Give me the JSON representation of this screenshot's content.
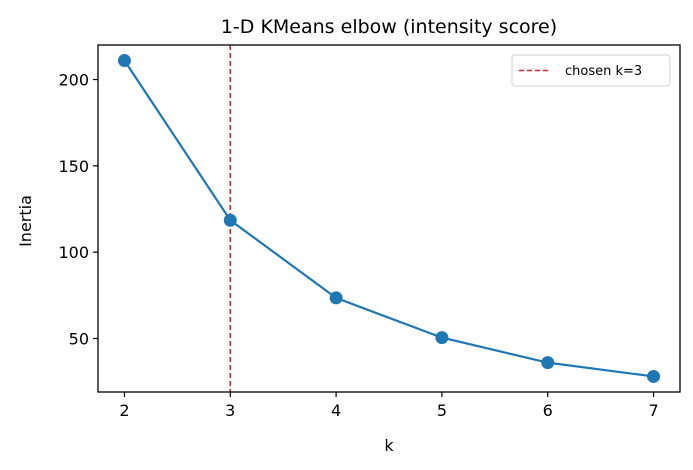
{
  "chart_data": {
    "type": "line",
    "title": "1-D KMeans elbow (intensity score)",
    "xlabel": "k",
    "ylabel": "Inertia",
    "x": [
      2,
      3,
      4,
      5,
      6,
      7
    ],
    "series": [
      {
        "name": "inertia",
        "values": [
          211,
          118.5,
          73.5,
          50.5,
          36,
          28
        ],
        "color": "#1f77b4",
        "marker": "circle"
      }
    ],
    "xticks": [
      "2",
      "3",
      "4",
      "5",
      "6",
      "7"
    ],
    "yticks": [
      "50",
      "100",
      "150",
      "200"
    ],
    "xlim": [
      1.75,
      7.25
    ],
    "ylim": [
      19,
      220
    ],
    "grid": false,
    "annotations": [
      {
        "type": "vline",
        "x": 3,
        "style": "dashed",
        "color": "#d62728",
        "label": "chosen k=3"
      }
    ],
    "legend": {
      "position": "upper right",
      "entries": [
        "chosen k=3"
      ]
    }
  }
}
